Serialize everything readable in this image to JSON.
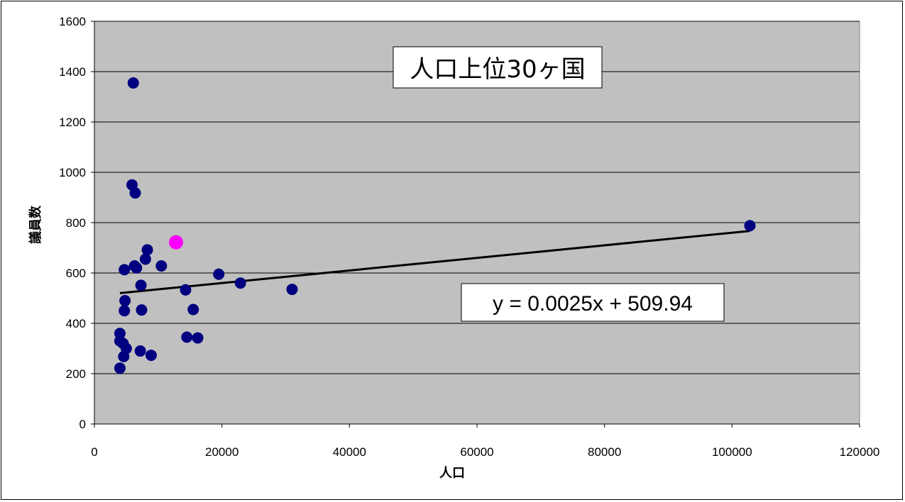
{
  "chart_data": {
    "type": "scatter",
    "title": "人口上位30ヶ国",
    "xlabel": "人口",
    "ylabel": "議員数",
    "xlim": [
      0,
      120000
    ],
    "ylim": [
      0,
      1600
    ],
    "x_ticks": [
      0,
      20000,
      40000,
      60000,
      80000,
      100000,
      120000
    ],
    "y_ticks": [
      0,
      200,
      400,
      600,
      800,
      1000,
      1200,
      1400,
      1600
    ],
    "x_tick_labels": [
      "0",
      "20000",
      "40000",
      "60000",
      "80000",
      "100000",
      "120000"
    ],
    "y_tick_labels": [
      "0",
      "200",
      "400",
      "600",
      "800",
      "1000",
      "1200",
      "1400",
      "1600"
    ],
    "grid": "horizontal",
    "plot_background": "#c0c0c0",
    "point_color": "#000080",
    "highlight_color": "#ff00ff",
    "series": [
      {
        "points": [
          {
            "x": 6100,
            "y": 1355
          },
          {
            "x": 5900,
            "y": 950
          },
          {
            "x": 6400,
            "y": 918
          },
          {
            "x": 8300,
            "y": 692
          },
          {
            "x": 8000,
            "y": 655
          },
          {
            "x": 10500,
            "y": 628
          },
          {
            "x": 6300,
            "y": 628
          },
          {
            "x": 6600,
            "y": 620
          },
          {
            "x": 4700,
            "y": 613
          },
          {
            "x": 19500,
            "y": 595
          },
          {
            "x": 22900,
            "y": 560
          },
          {
            "x": 7300,
            "y": 551
          },
          {
            "x": 31000,
            "y": 535
          },
          {
            "x": 14300,
            "y": 533
          },
          {
            "x": 4800,
            "y": 490
          },
          {
            "x": 15500,
            "y": 455
          },
          {
            "x": 7400,
            "y": 453
          },
          {
            "x": 4700,
            "y": 450
          },
          {
            "x": 4000,
            "y": 360
          },
          {
            "x": 14500,
            "y": 345
          },
          {
            "x": 16200,
            "y": 342
          },
          {
            "x": 4000,
            "y": 330
          },
          {
            "x": 4500,
            "y": 320
          },
          {
            "x": 5000,
            "y": 300
          },
          {
            "x": 7200,
            "y": 290
          },
          {
            "x": 8900,
            "y": 273
          },
          {
            "x": 4600,
            "y": 268
          },
          {
            "x": 4000,
            "y": 222
          },
          {
            "x": 102800,
            "y": 788
          }
        ]
      },
      {
        "points": [
          {
            "x": 12800,
            "y": 722
          }
        ],
        "highlight": true
      }
    ],
    "trendline": {
      "type": "linear",
      "slope": 0.0025,
      "intercept": 509.94,
      "x_range": [
        4000,
        102800
      ],
      "equation_label": "y = 0.0025x + 509.94"
    }
  }
}
